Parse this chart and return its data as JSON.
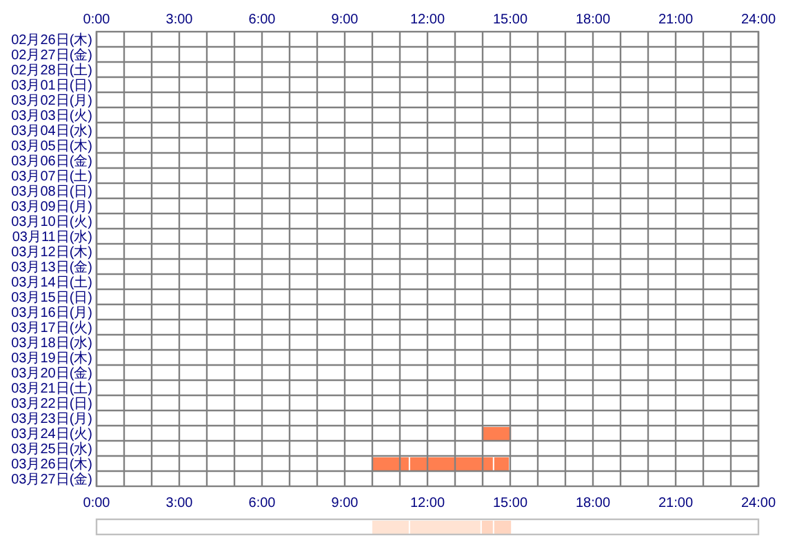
{
  "chart_data": [
    {
      "type": "bar",
      "orientation": "horizontal",
      "categories": [
        "02月26日(木)",
        "02月27日(金)",
        "02月28日(土)",
        "03月01日(日)",
        "03月02日(月)",
        "03月03日(火)",
        "03月04日(水)",
        "03月05日(木)",
        "03月06日(金)",
        "03月07日(土)",
        "03月08日(日)",
        "03月09日(月)",
        "03月10日(火)",
        "03月11日(水)",
        "03月12日(木)",
        "03月13日(金)",
        "03月14日(土)",
        "03月15日(日)",
        "03月16日(月)",
        "03月17日(火)",
        "03月18日(水)",
        "03月19日(木)",
        "03月20日(金)",
        "03月21日(土)",
        "03月22日(日)",
        "03月23日(月)",
        "03月24日(火)",
        "03月25日(水)",
        "03月26日(木)",
        "03月27日(金)"
      ],
      "series": [
        {
          "color": "#ff7f50",
          "base": [
            null,
            null,
            null,
            null,
            null,
            null,
            null,
            null,
            null,
            null,
            null,
            null,
            null,
            null,
            null,
            null,
            null,
            null,
            null,
            null,
            null,
            null,
            null,
            null,
            null,
            null,
            13.97,
            null,
            10,
            null
          ],
          "values": [
            null,
            null,
            null,
            null,
            null,
            null,
            null,
            null,
            null,
            null,
            null,
            null,
            null,
            null,
            null,
            null,
            null,
            null,
            null,
            null,
            null,
            null,
            null,
            null,
            null,
            null,
            1.11,
            null,
            1.37,
            null
          ]
        },
        {
          "color": "#ff7f50",
          "base": [
            null,
            null,
            null,
            null,
            null,
            null,
            null,
            null,
            null,
            null,
            null,
            null,
            null,
            null,
            null,
            null,
            null,
            null,
            null,
            null,
            null,
            null,
            null,
            null,
            null,
            null,
            null,
            null,
            11.37,
            null
          ],
          "values": [
            null,
            null,
            null,
            null,
            null,
            null,
            null,
            null,
            null,
            null,
            null,
            null,
            null,
            null,
            null,
            null,
            null,
            null,
            null,
            null,
            null,
            null,
            null,
            null,
            null,
            null,
            null,
            null,
            3.05,
            null
          ]
        },
        {
          "color": "#ff7f50",
          "base": [
            null,
            null,
            null,
            null,
            null,
            null,
            null,
            null,
            null,
            null,
            null,
            null,
            null,
            null,
            null,
            null,
            null,
            null,
            null,
            null,
            null,
            null,
            null,
            null,
            null,
            null,
            null,
            null,
            14.42,
            null
          ],
          "values": [
            null,
            null,
            null,
            null,
            null,
            null,
            null,
            null,
            null,
            null,
            null,
            null,
            null,
            null,
            null,
            null,
            null,
            null,
            null,
            null,
            null,
            null,
            null,
            null,
            null,
            null,
            null,
            null,
            0.58,
            null
          ]
        }
      ],
      "xlim": [
        0,
        24
      ],
      "xticks": [
        {
          "value": 0,
          "label": "0:00"
        },
        {
          "value": 1,
          "label": null
        },
        {
          "value": 2,
          "label": null
        },
        {
          "value": 3,
          "label": "3:00"
        },
        {
          "value": 4,
          "label": null
        },
        {
          "value": 5,
          "label": null
        },
        {
          "value": 6,
          "label": "6:00"
        },
        {
          "value": 7,
          "label": null
        },
        {
          "value": 8,
          "label": null
        },
        {
          "value": 9,
          "label": "9:00"
        },
        {
          "value": 10,
          "label": null
        },
        {
          "value": 11,
          "label": null
        },
        {
          "value": 12,
          "label": "12:00"
        },
        {
          "value": 13,
          "label": null
        },
        {
          "value": 14,
          "label": null
        },
        {
          "value": 15,
          "label": "15:00"
        },
        {
          "value": 16,
          "label": null
        },
        {
          "value": 17,
          "label": null
        },
        {
          "value": 18,
          "label": "18:00"
        },
        {
          "value": 19,
          "label": null
        },
        {
          "value": 20,
          "label": null
        },
        {
          "value": 21,
          "label": "21:00"
        },
        {
          "value": 22,
          "label": null
        },
        {
          "value": 23,
          "label": null
        },
        {
          "value": 24,
          "label": "24:00"
        }
      ],
      "x2lim": [
        0,
        24
      ],
      "x2ticks": [
        {
          "value": 0,
          "label": "0:00"
        },
        {
          "value": 3,
          "label": "3:00"
        },
        {
          "value": 6,
          "label": "6:00"
        },
        {
          "value": 9,
          "label": "9:00"
        },
        {
          "value": 12,
          "label": "12:00"
        },
        {
          "value": 15,
          "label": "15:00"
        },
        {
          "value": 18,
          "label": "18:00"
        },
        {
          "value": 21,
          "label": "21:00"
        },
        {
          "value": 24,
          "label": "24:00"
        }
      ],
      "grid": true
    },
    {
      "type": "bar",
      "orientation": "horizontal",
      "categories": [
        null
      ],
      "xlim": [
        0,
        24
      ],
      "series": [
        {
          "color": "#ffe3d3",
          "base": [
            10
          ],
          "values": [
            1.37
          ]
        },
        {
          "color": "#ffe3d3",
          "base": [
            11.37
          ],
          "values": [
            2.6
          ]
        },
        {
          "color": "#ffd5c0",
          "base": [
            13.97
          ],
          "values": [
            0.45
          ]
        },
        {
          "color": "#ffd5c0",
          "base": [
            14.42
          ],
          "values": [
            0.66
          ]
        }
      ]
    }
  ]
}
